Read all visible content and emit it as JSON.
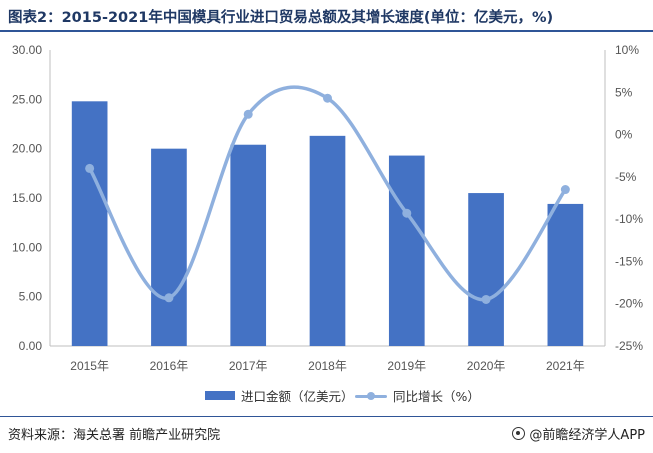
{
  "title": "图表2：2015-2021年中国模具行业进口贸易总额及其增长速度(单位：亿美元，%)",
  "source": "资料来源：海关总署 前瞻产业研究院",
  "brand": "@前瞻经济学人APP",
  "colors": {
    "bar": "#4472c4",
    "line": "#8fb0de",
    "title": "#1f3864"
  },
  "chart_data": {
    "type": "bar",
    "categories": [
      "2015年",
      "2016年",
      "2017年",
      "2018年",
      "2019年",
      "2020年",
      "2021年"
    ],
    "series": [
      {
        "name": "进口金额（亿美元）",
        "type": "bar",
        "axis": "left",
        "values": [
          24.8,
          20.0,
          20.4,
          21.3,
          19.3,
          15.5,
          14.4
        ]
      },
      {
        "name": "同比增长（%）",
        "type": "line",
        "smooth": true,
        "axis": "right",
        "values": [
          -4.0,
          -19.3,
          2.4,
          4.3,
          -9.3,
          -19.5,
          -6.5
        ]
      }
    ],
    "y_left": {
      "min": 0,
      "max": 30,
      "step": 5,
      "tick_labels": [
        "0.00",
        "5.00",
        "10.00",
        "15.00",
        "20.00",
        "25.00",
        "30.00"
      ]
    },
    "y_right": {
      "min": -25,
      "max": 10,
      "step": 5,
      "tick_labels": [
        "-25%",
        "-20%",
        "-15%",
        "-10%",
        "-5%",
        "0%",
        "5%",
        "10%"
      ]
    },
    "legend_position": "bottom",
    "grid": false
  }
}
